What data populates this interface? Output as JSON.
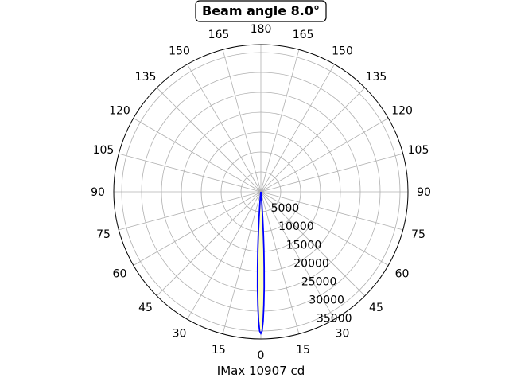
{
  "chart_data": {
    "type": "line",
    "projection": "polar",
    "title": "Beam angle 8.0°",
    "xlabel": "IMax 10907 cd",
    "angle_ticks": [
      {
        "angle": 0,
        "label": "0"
      },
      {
        "angle": 15,
        "label": "15"
      },
      {
        "angle": 30,
        "label": "30"
      },
      {
        "angle": 45,
        "label": "45"
      },
      {
        "angle": 60,
        "label": "60"
      },
      {
        "angle": 75,
        "label": "75"
      },
      {
        "angle": 90,
        "label": "90"
      },
      {
        "angle": 105,
        "label": "105"
      },
      {
        "angle": 120,
        "label": "120"
      },
      {
        "angle": 135,
        "label": "135"
      },
      {
        "angle": 150,
        "label": "150"
      },
      {
        "angle": 165,
        "label": "165"
      },
      {
        "angle": 180,
        "label": "180"
      },
      {
        "angle": -165,
        "label": "165"
      },
      {
        "angle": -150,
        "label": "150"
      },
      {
        "angle": -135,
        "label": "135"
      },
      {
        "angle": -120,
        "label": "120"
      },
      {
        "angle": -105,
        "label": "105"
      },
      {
        "angle": -90,
        "label": "90"
      },
      {
        "angle": -75,
        "label": "75"
      },
      {
        "angle": -60,
        "label": "60"
      },
      {
        "angle": -45,
        "label": "45"
      },
      {
        "angle": -30,
        "label": "30"
      },
      {
        "angle": -15,
        "label": "15"
      }
    ],
    "radial_ticks": [
      5000,
      10000,
      15000,
      20000,
      25000,
      30000,
      35000
    ],
    "rlim": [
      0,
      37000
    ],
    "grid": true,
    "series": [
      {
        "color": "#0000ff",
        "fill": "#ffffc0",
        "points": [
          {
            "angle": 0,
            "r": 35600
          },
          {
            "angle": 0.5,
            "r": 35000
          },
          {
            "angle": 1,
            "r": 32500
          },
          {
            "angle": 1.5,
            "r": 28500
          },
          {
            "angle": 2,
            "r": 24000
          },
          {
            "angle": 2.5,
            "r": 19000
          },
          {
            "angle": 3,
            "r": 14500
          },
          {
            "angle": 3.5,
            "r": 10000
          },
          {
            "angle": 4,
            "r": 6500
          },
          {
            "angle": 5,
            "r": 2500
          },
          {
            "angle": 6,
            "r": 800
          },
          {
            "angle": 8,
            "r": 0
          }
        ],
        "symmetric": true
      }
    ]
  }
}
